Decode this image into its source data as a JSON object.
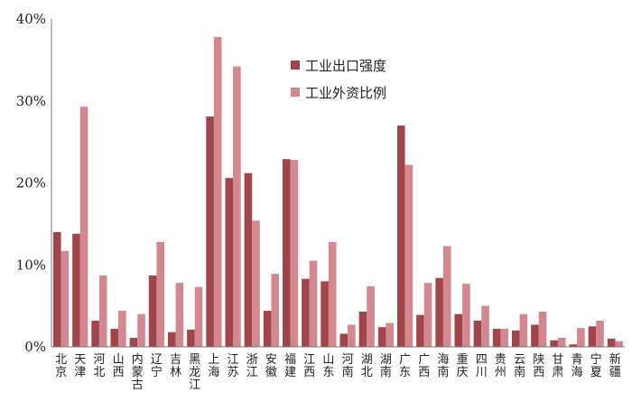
{
  "chart_data": {
    "type": "bar",
    "categories": [
      "北京",
      "天津",
      "河北",
      "山西",
      "内蒙古",
      "辽宁",
      "吉林",
      "黑龙江",
      "上海",
      "江苏",
      "浙江",
      "安徽",
      "福建",
      "江西",
      "山东",
      "河南",
      "湖北",
      "湖南",
      "广东",
      "广西",
      "海南",
      "重庆",
      "四川",
      "贵州",
      "云南",
      "陕西",
      "甘肃",
      "青海",
      "宁夏",
      "新疆"
    ],
    "series": [
      {
        "name": "工业出口强度",
        "color": "#a0464a",
        "values": [
          14.0,
          13.8,
          3.2,
          2.2,
          1.1,
          8.7,
          1.8,
          2.1,
          28.1,
          20.6,
          21.2,
          4.4,
          22.9,
          8.3,
          8.0,
          1.6,
          4.3,
          2.4,
          27.0,
          3.9,
          8.4,
          4.0,
          3.2,
          2.2,
          2.0,
          2.7,
          0.8,
          0.3,
          2.5,
          1.0
        ]
      },
      {
        "name": "工业外资比例",
        "color": "#d2888e",
        "values": [
          11.7,
          29.3,
          8.7,
          4.4,
          4.0,
          12.8,
          7.8,
          7.3,
          37.8,
          34.2,
          15.4,
          8.9,
          22.8,
          10.5,
          12.8,
          2.7,
          7.4,
          2.9,
          22.2,
          7.8,
          12.3,
          7.7,
          5.0,
          2.2,
          4.0,
          4.3,
          1.1,
          2.3,
          3.2,
          0.7
        ]
      }
    ],
    "yticks": [
      "0%",
      "10%",
      "20%",
      "30%",
      "40%"
    ],
    "ylim": [
      0,
      40
    ],
    "legend": "top-center",
    "grid": false
  }
}
